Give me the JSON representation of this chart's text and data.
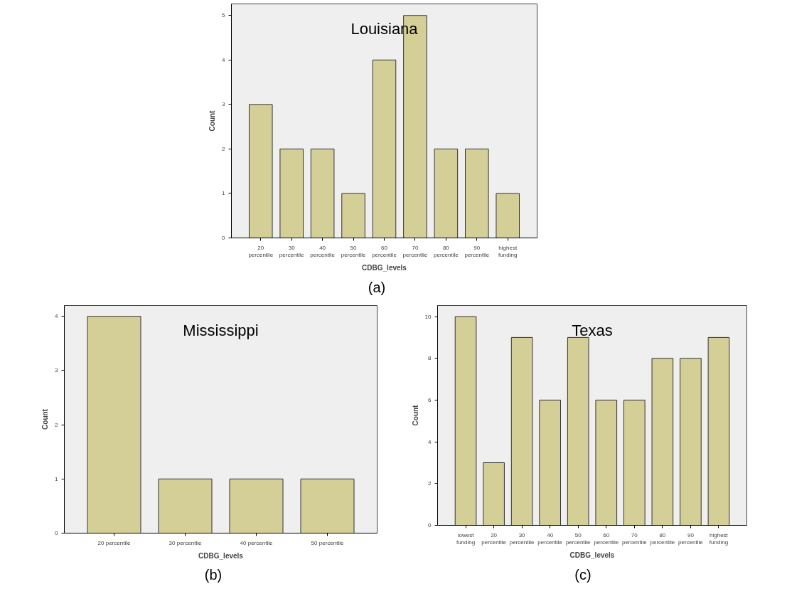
{
  "chart_data": [
    {
      "type": "bar",
      "title": "Louisiana",
      "xlabel": "CDBG_levels",
      "ylabel": "Count",
      "categories": [
        "20 percentile",
        "30 percentile",
        "40 percentile",
        "50 percentile",
        "60 percentile",
        "70 percentile",
        "80 percentile",
        "90 percentile",
        "highest funding"
      ],
      "values": [
        3,
        2,
        2,
        1,
        4,
        5,
        2,
        2,
        1
      ],
      "color": "#d4cf97",
      "ylim": [
        0,
        5.26
      ],
      "yticks": [
        0,
        1,
        2,
        3,
        4,
        5
      ],
      "grid": false,
      "annotations": [
        "(a)"
      ]
    },
    {
      "type": "bar",
      "title": "Mississippi",
      "xlabel": "CDBG_levels",
      "ylabel": "Count",
      "categories": [
        "20 percentile",
        "30 percentile",
        "40 percentile",
        "50 percentile"
      ],
      "values": [
        4,
        1,
        1,
        1
      ],
      "color": "#d4cf97",
      "ylim": [
        0,
        4.2
      ],
      "yticks": [
        0,
        1,
        2,
        3,
        4
      ],
      "grid": false,
      "annotations": [
        "(b)"
      ]
    },
    {
      "type": "bar",
      "title": "Texas",
      "xlabel": "CDBG_levels",
      "ylabel": "Count",
      "categories": [
        "lowest funding",
        "20 percentile",
        "30 percentile",
        "40 percentile",
        "50 percentile",
        "60 percentile",
        "70 percentile",
        "80 percentile",
        "90 percentile",
        "highest funding"
      ],
      "values": [
        10,
        3,
        9,
        6,
        9,
        6,
        6,
        8,
        8,
        9
      ],
      "color": "#d4cf97",
      "ylim": [
        0,
        10.53
      ],
      "yticks": [
        0,
        2,
        4,
        6,
        8,
        10
      ],
      "grid": false,
      "annotations": [
        "(c)"
      ]
    }
  ]
}
